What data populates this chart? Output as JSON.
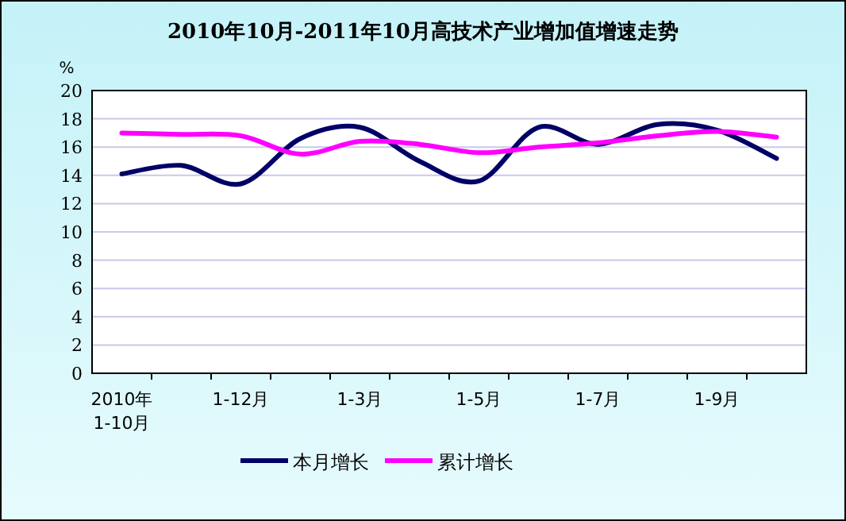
{
  "chart_data": {
    "type": "line",
    "title": "2010年10月-2011年10月高技术产业增加值增速走势",
    "ylabel": "%",
    "categories": [
      "2010年\n1-10月",
      null,
      "1-12月",
      null,
      "1-3月",
      null,
      "1-5月",
      null,
      "1-7月",
      null,
      "1-9月",
      null
    ],
    "series": [
      {
        "name": "本月增长",
        "color": "#000066",
        "values": [
          14.1,
          14.7,
          13.4,
          16.6,
          17.4,
          15.0,
          13.6,
          17.4,
          16.2,
          17.6,
          17.2,
          15.2
        ]
      },
      {
        "name": "累计增长",
        "color": "#ff00ff",
        "values": [
          17.0,
          16.9,
          16.8,
          15.5,
          16.4,
          16.2,
          15.6,
          16.0,
          16.3,
          16.8,
          17.1,
          16.7
        ]
      }
    ],
    "ylim": [
      0,
      20
    ],
    "yticks": [
      0,
      2,
      4,
      6,
      8,
      10,
      12,
      14,
      16,
      18,
      20
    ],
    "grid": "y",
    "legend": "bottom"
  }
}
